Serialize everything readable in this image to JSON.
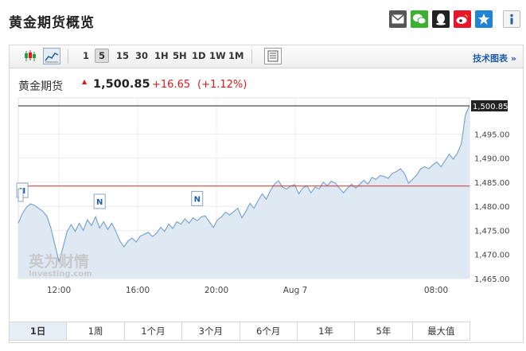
{
  "page": {
    "title": "黄金期货概览"
  },
  "share_icons": [
    "mail-icon",
    "wechat-icon",
    "qq-icon",
    "weibo-icon",
    "qzone-icon",
    "info-icon"
  ],
  "toolbar": {
    "intervals": [
      "1",
      "5",
      "15",
      "30",
      "1H",
      "5H",
      "1D",
      "1W",
      "1M"
    ],
    "active_interval": "5",
    "tech_chart_link": "技术图表 »"
  },
  "quote": {
    "name": "黄金期货",
    "price": "1,500.85",
    "change": "+16.65",
    "change_pct": "(+1.12%)",
    "up_color": "#d81b1b"
  },
  "chart_data": {
    "type": "area",
    "x_tick_labels": [
      "12:00",
      "16:00",
      "20:00",
      "Aug 7",
      "08:00"
    ],
    "y_tick_labels": [
      "1,465.00",
      "1,470.00",
      "1,475.00",
      "1,480.00",
      "1,485.00",
      "1,490.00",
      "1,495.00"
    ],
    "ylim": [
      1465,
      1502.5
    ],
    "last_price_label": "1,500.85",
    "last_price": 1500.85,
    "reference_price": 1484.2,
    "series": [
      {
        "values": [
          1476.5,
          1478.5,
          1479.8,
          1480.5,
          1480.2,
          1479.6,
          1479.0,
          1478.0,
          1475.5,
          1472.0,
          1468.5,
          1471.5,
          1474.8,
          1476.2,
          1474.8,
          1476.5,
          1475.0,
          1477.2,
          1476.0,
          1477.8,
          1475.5,
          1476.8,
          1475.2,
          1476.5,
          1474.8,
          1472.8,
          1471.6,
          1472.8,
          1473.4,
          1472.6,
          1473.8,
          1474.2,
          1474.6,
          1473.7,
          1474.4,
          1475.6,
          1474.8,
          1476.3,
          1475.4,
          1476.8,
          1476.3,
          1477.4,
          1476.5,
          1477.6,
          1477.0,
          1477.8,
          1478.0,
          1476.8,
          1475.6,
          1477.2,
          1477.8,
          1478.8,
          1478.2,
          1478.9,
          1479.6,
          1477.6,
          1479.0,
          1480.6,
          1479.6,
          1481.2,
          1482.6,
          1481.5,
          1483.2,
          1484.6,
          1485.3,
          1484.0,
          1483.6,
          1484.2,
          1484.5,
          1482.6,
          1483.8,
          1484.3,
          1482.8,
          1484.0,
          1483.6,
          1485.0,
          1484.3,
          1485.2,
          1484.8,
          1483.8,
          1482.8,
          1483.8,
          1484.6,
          1483.8,
          1484.6,
          1485.4,
          1484.6,
          1486.0,
          1485.6,
          1486.4,
          1486.2,
          1485.8,
          1486.8,
          1487.2,
          1487.8,
          1486.8,
          1484.8,
          1485.6,
          1486.5,
          1487.8,
          1488.2,
          1487.8,
          1488.6,
          1489.2,
          1488.2,
          1489.5,
          1490.8,
          1489.8,
          1491.0,
          1493.0,
          1499.0,
          1500.85
        ],
        "markers": [
          {
            "label": "N",
            "index": 1,
            "value": 1481.5
          },
          {
            "label": "N",
            "index": 20,
            "value": 1479.2
          },
          {
            "label": "N",
            "index": 44,
            "value": 1479.8
          }
        ]
      }
    ],
    "grid": true
  },
  "watermark": {
    "cn": "英为财情",
    "en": "Investing.com"
  },
  "periods": [
    "1日",
    "1周",
    "1个月",
    "3个月",
    "6个月",
    "1年",
    "5年",
    "最大值"
  ],
  "active_period": "1日"
}
